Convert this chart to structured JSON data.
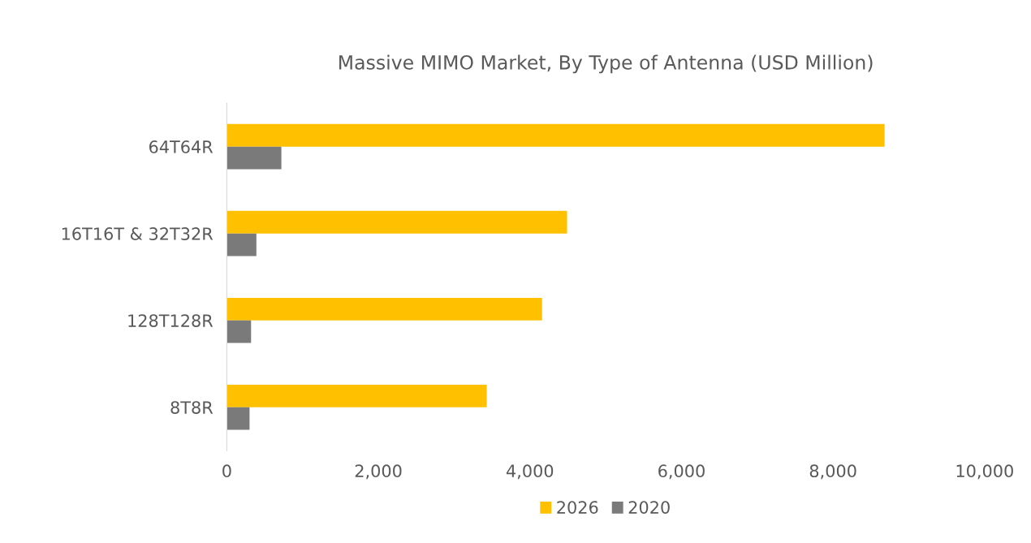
{
  "chart_data": {
    "type": "bar",
    "orientation": "horizontal",
    "title": "Massive MIMO Market, By Type of Antenna (USD Million)",
    "categories": [
      "64T64R",
      "16T16T & 32T32R",
      "128T128R",
      "8T8R"
    ],
    "series": [
      {
        "name": "2026",
        "color": "#ffc000",
        "values": [
          8680,
          4490,
          4160,
          3430
        ]
      },
      {
        "name": "2020",
        "color": "#7a7a7a",
        "values": [
          720,
          390,
          320,
          300
        ]
      }
    ],
    "xlim": [
      0,
      10000
    ],
    "xticks": [
      0,
      {
        "value": 2000,
        "label": "2,000"
      },
      {
        "value": 4000,
        "label": "4,000"
      },
      {
        "value": 6000,
        "label": "6,000"
      },
      {
        "value": 8000,
        "label": "8,000"
      },
      {
        "value": 10000,
        "label": "10,000"
      }
    ],
    "grid": false,
    "legend": "bottom"
  }
}
